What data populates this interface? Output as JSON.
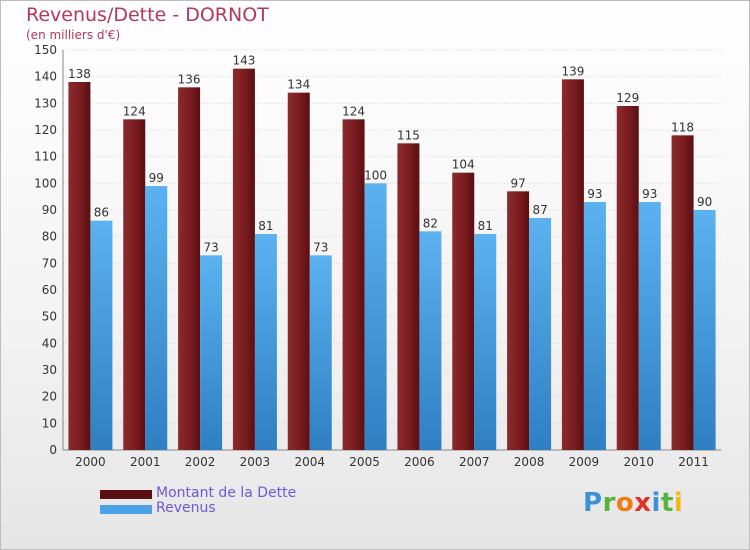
{
  "title": "Revenus/Dette - DORNOT",
  "subtitle": "(en milliers d'€)",
  "logo": "Proxiti",
  "colors": {
    "debt": "#7a1c1f",
    "revenue": "#4aa3e6",
    "title": "#b4385b",
    "legend_text": "#6f57d6"
  },
  "chart_data": {
    "type": "bar",
    "title": "Revenus/Dette - DORNOT",
    "ylabel": "(en milliers d'€)",
    "categories": [
      "2000",
      "2001",
      "2002",
      "2003",
      "2004",
      "2005",
      "2006",
      "2007",
      "2008",
      "2009",
      "2010",
      "2011"
    ],
    "series": [
      {
        "name": "Montant de la Dette",
        "color": "#7a1c1f",
        "values": [
          138,
          124,
          136,
          143,
          134,
          124,
          115,
          104,
          97,
          139,
          129,
          118
        ]
      },
      {
        "name": "Revenus",
        "color": "#4aa3e6",
        "values": [
          86,
          99,
          73,
          81,
          73,
          100,
          82,
          81,
          87,
          93,
          93,
          90
        ]
      }
    ],
    "ylim": [
      0,
      150
    ],
    "yticks": [
      0,
      10,
      20,
      30,
      40,
      50,
      60,
      70,
      80,
      90,
      100,
      110,
      120,
      130,
      140,
      150
    ],
    "grid": true,
    "legend_position": "bottom-left"
  }
}
